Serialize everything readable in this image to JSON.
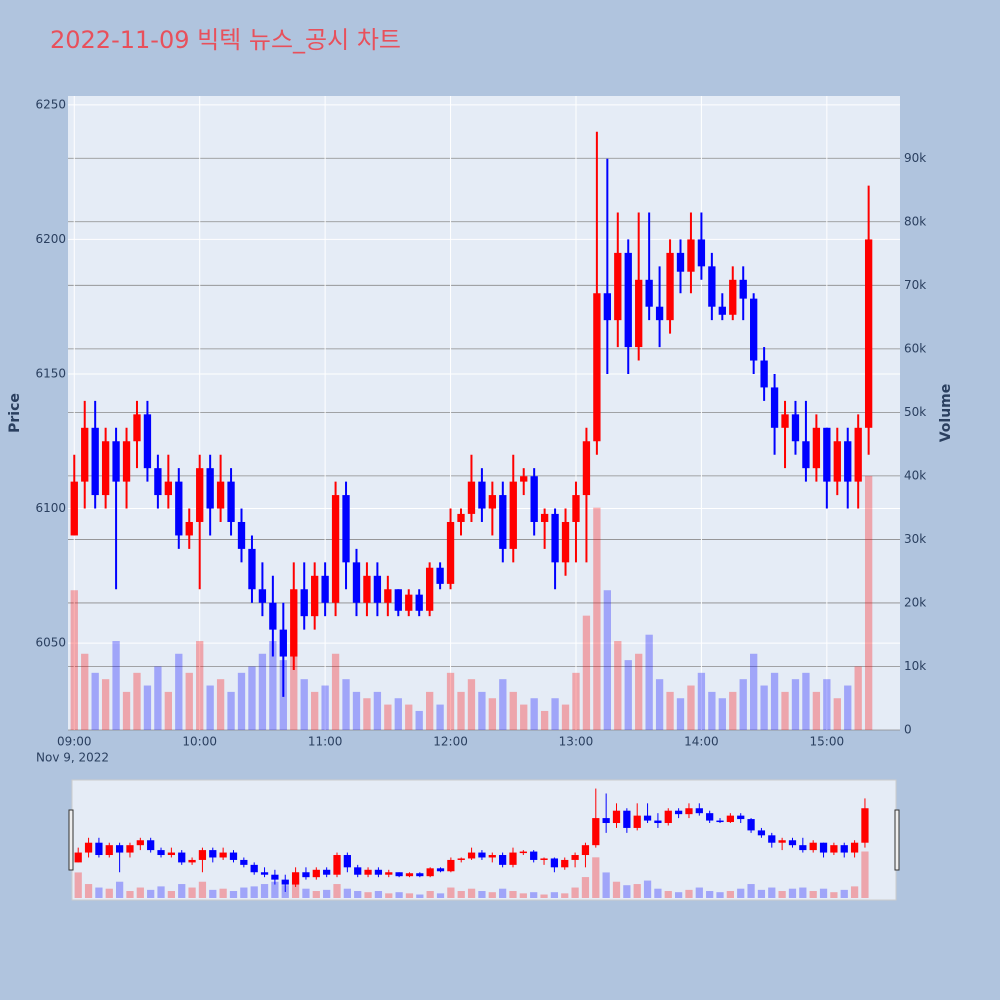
{
  "chart_data": {
    "type": "candlestick",
    "title": "2022-11-09 빅텍 뉴스_공시 차트",
    "y_label": "Price",
    "y2_label": "Volume",
    "x_date_label": "Nov 9, 2022",
    "increasing_color": "#ff0000",
    "decreasing_color": "#0000ff",
    "xlim": [
      "08:57",
      "15:35"
    ],
    "xticks": [
      "09:00",
      "10:00",
      "11:00",
      "12:00",
      "13:00",
      "14:00",
      "15:00"
    ],
    "ylim": [
      6017.7,
      6253.3
    ],
    "yticks": [
      6050,
      6100,
      6150,
      6200,
      6250
    ],
    "y2lim": [
      0,
      99800
    ],
    "y2ticks": [
      0,
      {
        "value": 10000,
        "label": "10k"
      },
      {
        "value": 20000,
        "label": "20k"
      },
      {
        "value": 30000,
        "label": "30k"
      },
      {
        "value": 40000,
        "label": "40k"
      },
      {
        "value": 50000,
        "label": "50k"
      },
      {
        "value": 60000,
        "label": "60k"
      },
      {
        "value": 70000,
        "label": "70k"
      },
      {
        "value": 80000,
        "label": "80k"
      },
      {
        "value": 90000,
        "label": "90k"
      }
    ],
    "grid": true,
    "range_slider": true,
    "x": [
      "09:00",
      "09:05",
      "09:10",
      "09:15",
      "09:20",
      "09:25",
      "09:30",
      "09:35",
      "09:40",
      "09:45",
      "09:50",
      "09:55",
      "10:00",
      "10:05",
      "10:10",
      "10:15",
      "10:20",
      "10:25",
      "10:30",
      "10:35",
      "10:40",
      "10:45",
      "10:50",
      "10:55",
      "11:00",
      "11:05",
      "11:10",
      "11:15",
      "11:20",
      "11:25",
      "11:30",
      "11:35",
      "11:40",
      "11:45",
      "11:50",
      "11:55",
      "12:00",
      "12:05",
      "12:10",
      "12:15",
      "12:20",
      "12:25",
      "12:30",
      "12:35",
      "12:40",
      "12:45",
      "12:50",
      "12:55",
      "13:00",
      "13:05",
      "13:10",
      "13:15",
      "13:20",
      "13:25",
      "13:30",
      "13:35",
      "13:40",
      "13:45",
      "13:50",
      "13:55",
      "14:00",
      "14:05",
      "14:10",
      "14:15",
      "14:20",
      "14:25",
      "14:30",
      "14:35",
      "14:40",
      "14:45",
      "14:50",
      "14:55",
      "15:00",
      "15:05",
      "15:10",
      "15:15",
      "15:20"
    ],
    "open": [
      6090,
      6110,
      6130,
      6105,
      6125,
      6110,
      6125,
      6135,
      6115,
      6105,
      6110,
      6090,
      6095,
      6115,
      6100,
      6110,
      6095,
      6085,
      6070,
      6065,
      6055,
      6045,
      6070,
      6060,
      6075,
      6065,
      6105,
      6080,
      6065,
      6075,
      6065,
      6070,
      6062,
      6068,
      6062,
      6078,
      6072,
      6095,
      6098,
      6110,
      6100,
      6105,
      6085,
      6110,
      6112,
      6095,
      6098,
      6080,
      6095,
      6105,
      6125,
      6180,
      6170,
      6195,
      6160,
      6185,
      6175,
      6170,
      6195,
      6188,
      6200,
      6190,
      6175,
      6172,
      6185,
      6178,
      6155,
      6145,
      6130,
      6135,
      6125,
      6115,
      6130,
      6110,
      6125,
      6110,
      6130
    ],
    "high": [
      6120,
      6140,
      6140,
      6130,
      6130,
      6130,
      6140,
      6140,
      6120,
      6120,
      6115,
      6100,
      6120,
      6120,
      6120,
      6115,
      6100,
      6090,
      6080,
      6075,
      6065,
      6080,
      6080,
      6080,
      6080,
      6110,
      6110,
      6085,
      6080,
      6080,
      6075,
      6070,
      6070,
      6070,
      6080,
      6080,
      6100,
      6100,
      6120,
      6115,
      6110,
      6110,
      6120,
      6115,
      6115,
      6100,
      6100,
      6100,
      6110,
      6130,
      6240,
      6230,
      6210,
      6200,
      6210,
      6210,
      6190,
      6200,
      6200,
      6210,
      6210,
      6195,
      6180,
      6190,
      6190,
      6180,
      6160,
      6150,
      6140,
      6140,
      6140,
      6135,
      6130,
      6130,
      6130,
      6135,
      6220
    ],
    "low": [
      6090,
      6100,
      6100,
      6100,
      6070,
      6100,
      6115,
      6110,
      6100,
      6100,
      6085,
      6085,
      6070,
      6090,
      6095,
      6090,
      6080,
      6065,
      6060,
      6045,
      6030,
      6040,
      6055,
      6055,
      6060,
      6060,
      6070,
      6060,
      6060,
      6060,
      6060,
      6060,
      6060,
      6060,
      6060,
      6070,
      6070,
      6090,
      6095,
      6095,
      6090,
      6080,
      6080,
      6105,
      6090,
      6085,
      6070,
      6075,
      6080,
      6080,
      6120,
      6150,
      6160,
      6150,
      6155,
      6170,
      6160,
      6165,
      6180,
      6180,
      6185,
      6170,
      6170,
      6170,
      6170,
      6150,
      6140,
      6120,
      6115,
      6120,
      6110,
      6110,
      6100,
      6105,
      6100,
      6100,
      6120
    ],
    "close": [
      6110,
      6130,
      6105,
      6125,
      6110,
      6125,
      6135,
      6115,
      6105,
      6110,
      6090,
      6095,
      6115,
      6100,
      6110,
      6095,
      6085,
      6070,
      6065,
      6055,
      6045,
      6070,
      6060,
      6075,
      6065,
      6105,
      6080,
      6065,
      6075,
      6065,
      6070,
      6062,
      6068,
      6062,
      6078,
      6072,
      6095,
      6098,
      6110,
      6100,
      6105,
      6085,
      6110,
      6112,
      6095,
      6098,
      6080,
      6095,
      6105,
      6125,
      6180,
      6170,
      6195,
      6160,
      6185,
      6175,
      6170,
      6195,
      6188,
      6200,
      6190,
      6175,
      6172,
      6185,
      6178,
      6155,
      6145,
      6130,
      6135,
      6125,
      6115,
      6130,
      6110,
      6125,
      6110,
      6130,
      6200
    ],
    "volume": [
      22000,
      12000,
      9000,
      8000,
      14000,
      6000,
      9000,
      7000,
      10000,
      6000,
      12000,
      9000,
      14000,
      7000,
      8000,
      6000,
      9000,
      10000,
      12000,
      14000,
      11000,
      16000,
      8000,
      6000,
      7000,
      12000,
      8000,
      6000,
      5000,
      6000,
      4000,
      5000,
      4000,
      3000,
      6000,
      4000,
      9000,
      6000,
      8000,
      6000,
      5000,
      8000,
      6000,
      4000,
      5000,
      3000,
      5000,
      4000,
      9000,
      18000,
      35000,
      22000,
      14000,
      11000,
      12000,
      15000,
      8000,
      6000,
      5000,
      7000,
      9000,
      6000,
      5000,
      6000,
      8000,
      12000,
      7000,
      9000,
      6000,
      8000,
      9000,
      6000,
      8000,
      5000,
      7000,
      10000,
      40000
    ]
  }
}
